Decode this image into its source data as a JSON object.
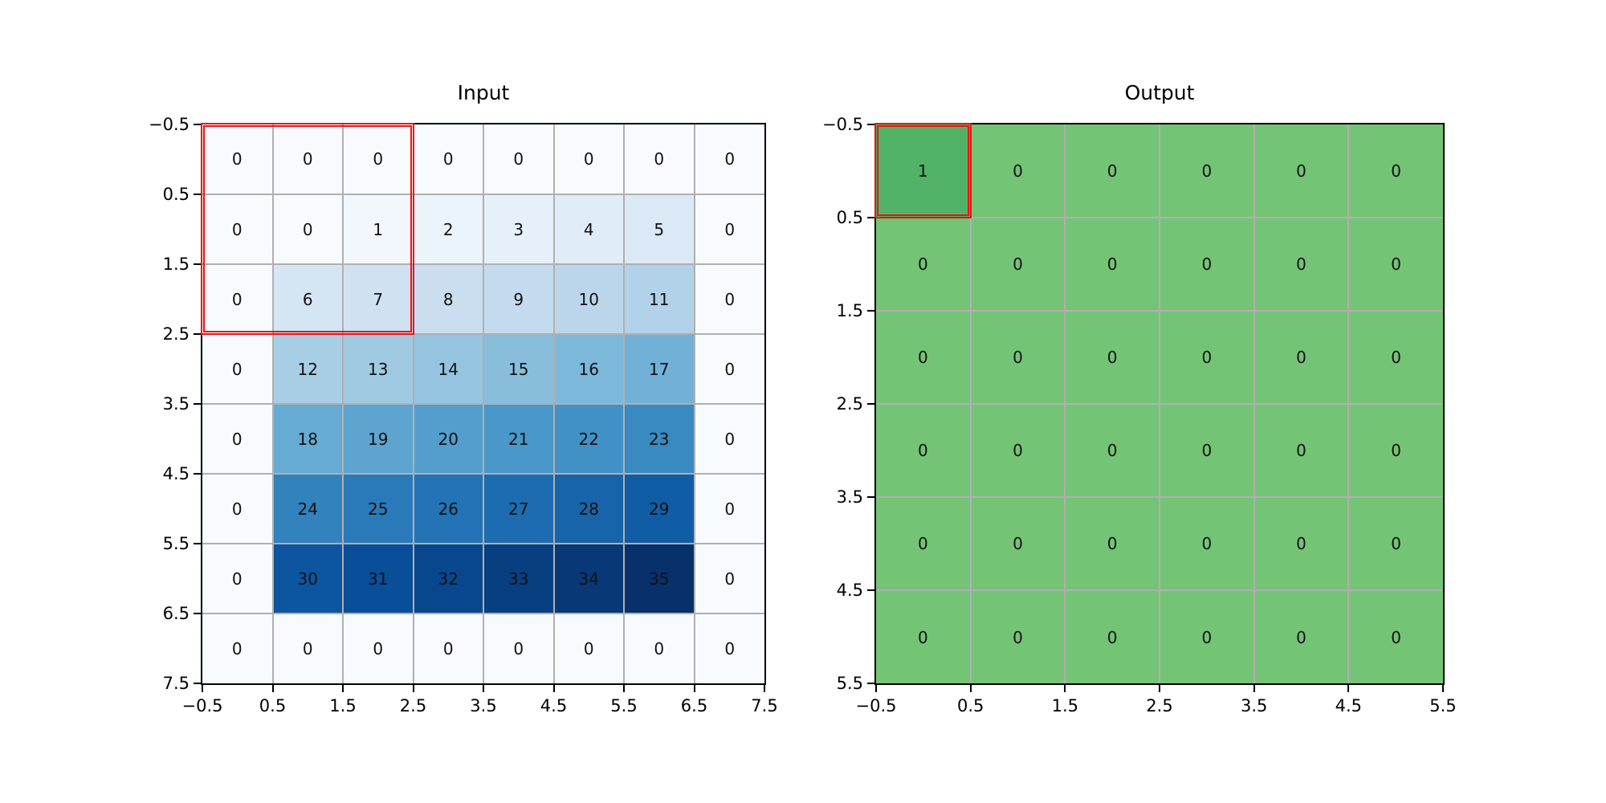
{
  "figure": {
    "background": "#ffffff",
    "spine_color": "#000000",
    "tick_color": "#000000"
  },
  "chart_data": [
    {
      "type": "heatmap",
      "title": "Input",
      "rows": 8,
      "cols": 8,
      "matrix": [
        [
          0,
          0,
          0,
          0,
          0,
          0,
          0,
          0
        ],
        [
          0,
          0,
          1,
          2,
          3,
          4,
          5,
          0
        ],
        [
          0,
          6,
          7,
          8,
          9,
          10,
          11,
          0
        ],
        [
          0,
          12,
          13,
          14,
          15,
          16,
          17,
          0
        ],
        [
          0,
          18,
          19,
          20,
          21,
          22,
          23,
          0
        ],
        [
          0,
          24,
          25,
          26,
          27,
          28,
          29,
          0
        ],
        [
          0,
          30,
          31,
          32,
          33,
          34,
          35,
          0
        ],
        [
          0,
          0,
          0,
          0,
          0,
          0,
          0,
          0
        ]
      ],
      "x_tick_labels": [
        "−0.5",
        "0.5",
        "1.5",
        "2.5",
        "3.5",
        "4.5",
        "5.5",
        "6.5",
        "7.5"
      ],
      "y_tick_labels": [
        "−0.5",
        "0.5",
        "1.5",
        "2.5",
        "3.5",
        "4.5",
        "5.5",
        "6.5",
        "7.5"
      ],
      "xlim": [
        -0.5,
        7.5
      ],
      "ylim": [
        7.5,
        -0.5
      ],
      "grid": true,
      "grid_color": "#b0b0b0",
      "value_color": "#111111",
      "colormap": {
        "kind": "stops",
        "name": "Blues",
        "vmin": 0,
        "vmax": 35,
        "stops": [
          [
            0.0,
            "#f7fbff"
          ],
          [
            0.125,
            "#deebf7"
          ],
          [
            0.25,
            "#c6dbef"
          ],
          [
            0.375,
            "#9ecae1"
          ],
          [
            0.5,
            "#6baed6"
          ],
          [
            0.625,
            "#4292c6"
          ],
          [
            0.75,
            "#2171b5"
          ],
          [
            0.875,
            "#08519c"
          ],
          [
            1.0,
            "#08306b"
          ]
        ]
      },
      "highlight": {
        "row": 0,
        "col": 0,
        "rows": 3,
        "cols": 3,
        "color": "#ee1111"
      }
    },
    {
      "type": "heatmap",
      "title": "Output",
      "rows": 6,
      "cols": 6,
      "matrix": [
        [
          1,
          0,
          0,
          0,
          0,
          0
        ],
        [
          0,
          0,
          0,
          0,
          0,
          0
        ],
        [
          0,
          0,
          0,
          0,
          0,
          0
        ],
        [
          0,
          0,
          0,
          0,
          0,
          0
        ],
        [
          0,
          0,
          0,
          0,
          0,
          0
        ],
        [
          0,
          0,
          0,
          0,
          0,
          0
        ]
      ],
      "x_tick_labels": [
        "−0.5",
        "0.5",
        "1.5",
        "2.5",
        "3.5",
        "4.5",
        "5.5"
      ],
      "y_tick_labels": [
        "−0.5",
        "0.5",
        "1.5",
        "2.5",
        "3.5",
        "4.5",
        "5.5"
      ],
      "xlim": [
        -0.5,
        5.5
      ],
      "ylim": [
        5.5,
        -0.5
      ],
      "grid": true,
      "grid_color": "#b3adb5",
      "value_color": "#111111",
      "colormap": {
        "kind": "discrete",
        "map": {
          "0": "#74c476",
          "1": "#52b368"
        }
      },
      "highlight": {
        "row": 0,
        "col": 0,
        "rows": 1,
        "cols": 1,
        "color": "#ee1111"
      }
    }
  ]
}
